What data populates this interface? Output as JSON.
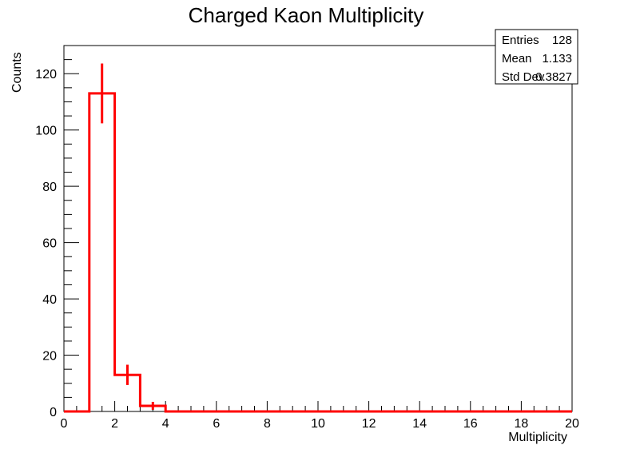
{
  "chart_data": {
    "type": "bar",
    "title": "Charged Kaon Multiplicity",
    "xlabel": "Multiplicity",
    "ylabel": "Counts",
    "xlim": [
      0,
      20
    ],
    "ylim": [
      0,
      130
    ],
    "grid": false,
    "bin_width": 1,
    "bins_x": [
      0,
      1,
      2,
      3,
      4,
      5,
      6,
      7,
      8,
      9,
      10,
      11,
      12,
      13,
      14,
      15,
      16,
      17,
      18,
      19
    ],
    "values": [
      0,
      113,
      13,
      2,
      0,
      0,
      0,
      0,
      0,
      0,
      0,
      0,
      0,
      0,
      0,
      0,
      0,
      0,
      0,
      0
    ],
    "x_ticks": [
      "0",
      "2",
      "4",
      "6",
      "8",
      "10",
      "12",
      "14",
      "16",
      "18",
      "20"
    ],
    "y_ticks": [
      "0",
      "20",
      "40",
      "60",
      "80",
      "100",
      "120"
    ],
    "series_color": "#ff0000",
    "stats": {
      "entries_label": "Entries",
      "entries_value": "128",
      "mean_label": "Mean",
      "mean_value": "1.133",
      "stddev_label": "Std Dev",
      "stddev_value": "0.3827"
    }
  }
}
